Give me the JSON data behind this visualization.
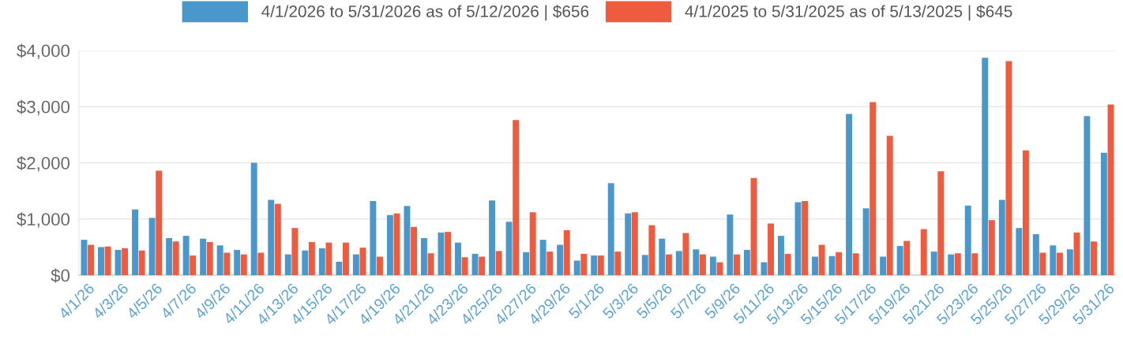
{
  "chart_data": {
    "type": "bar",
    "categories": [
      "4/1/26",
      null,
      "4/3/26",
      null,
      "4/5/26",
      null,
      "4/7/26",
      null,
      "4/9/26",
      null,
      "4/11/26",
      null,
      "4/13/26",
      null,
      "4/15/26",
      null,
      "4/17/26",
      null,
      "4/19/26",
      null,
      "4/21/26",
      null,
      "4/23/26",
      null,
      "4/25/26",
      null,
      "4/27/26",
      null,
      "4/29/26",
      null,
      "5/1/26",
      null,
      "5/3/26",
      null,
      "5/5/26",
      null,
      "5/7/26",
      null,
      "5/9/26",
      null,
      "5/11/26",
      null,
      "5/13/26",
      null,
      "5/15/26",
      null,
      "5/17/26",
      null,
      "5/19/26",
      null,
      "5/21/26",
      null,
      "5/23/26",
      null,
      "5/25/26",
      null,
      "5/27/26",
      null,
      "5/29/26",
      null,
      "5/31/26"
    ],
    "series": [
      {
        "name": "4/1/2026 to 5/31/2026 as of 5/12/2026 | $656",
        "color": "#4a98cb",
        "values": [
          630,
          500,
          450,
          1170,
          1020,
          660,
          700,
          650,
          530,
          450,
          2000,
          1340,
          370,
          440,
          480,
          240,
          370,
          1320,
          1070,
          1230,
          660,
          760,
          580,
          380,
          1330,
          950,
          410,
          630,
          540,
          260,
          350,
          1640,
          1100,
          360,
          650,
          430,
          460,
          330,
          1080,
          450,
          230,
          700,
          1300,
          330,
          340,
          2870,
          1190,
          330,
          520,
          null,
          420,
          370,
          1240,
          3870,
          1340,
          840,
          730,
          530,
          460,
          2830,
          2180
        ]
      },
      {
        "name": "4/1/2025 to 5/31/2025 as of 5/13/2025 | $645",
        "color": "#ef5b3f",
        "values": [
          540,
          510,
          480,
          440,
          1860,
          600,
          350,
          590,
          400,
          370,
          400,
          1270,
          840,
          590,
          580,
          580,
          490,
          330,
          1100,
          860,
          390,
          770,
          320,
          330,
          430,
          2760,
          1120,
          420,
          800,
          380,
          350,
          420,
          1120,
          890,
          370,
          750,
          370,
          230,
          370,
          1730,
          920,
          380,
          1320,
          540,
          410,
          390,
          3080,
          2480,
          610,
          820,
          1850,
          390,
          390,
          980,
          3810,
          2220,
          400,
          400,
          760,
          600,
          3040
        ]
      }
    ],
    "ylim": [
      0,
      4000
    ],
    "yticks": [
      {
        "value": 0,
        "label": "$0"
      },
      {
        "value": 1000,
        "label": "$1,000"
      },
      {
        "value": 2000,
        "label": "$2,000"
      },
      {
        "value": 3000,
        "label": "$3,000"
      },
      {
        "value": 4000,
        "label": "$4,000"
      }
    ],
    "grid": "y",
    "legend": "top"
  }
}
